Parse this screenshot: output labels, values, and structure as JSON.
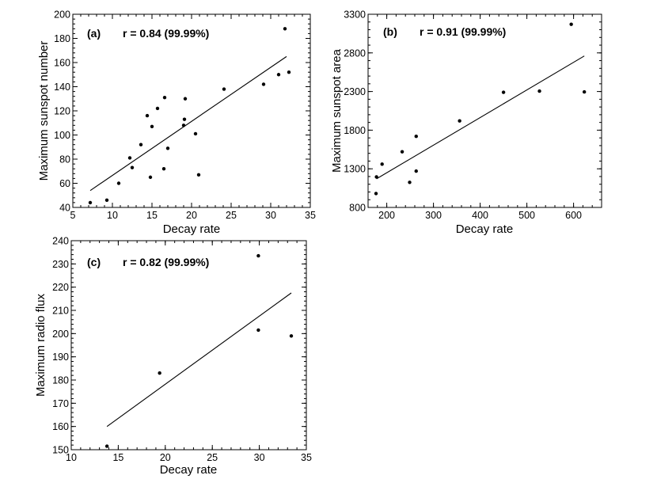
{
  "chart_data": [
    {
      "id": "a",
      "type": "scatter",
      "panel_label": "(a)",
      "correlation_label": "r = 0.84 (99.99%)",
      "xlabel": "Decay rate",
      "ylabel": "Maximum sunspot number",
      "xlim": [
        5,
        35
      ],
      "ylim": [
        40,
        200
      ],
      "xticks": [
        5,
        10,
        15,
        20,
        25,
        30,
        35
      ],
      "yticks": [
        40,
        60,
        80,
        100,
        120,
        140,
        160,
        180,
        200
      ],
      "xtick_labels": [
        "5",
        "10",
        "15",
        "20",
        "25",
        "30",
        "35"
      ],
      "ytick_labels": [
        "40",
        "60",
        "80",
        "100",
        "120",
        "140",
        "160",
        "180",
        "200"
      ],
      "x_minor_step": 1,
      "y_minor_step": 4,
      "points": [
        [
          7.2,
          44
        ],
        [
          9.3,
          46
        ],
        [
          10.8,
          60
        ],
        [
          12.2,
          81
        ],
        [
          12.5,
          73
        ],
        [
          13.6,
          92
        ],
        [
          14.4,
          116
        ],
        [
          14.8,
          65
        ],
        [
          15.0,
          107
        ],
        [
          15.7,
          122
        ],
        [
          16.5,
          72
        ],
        [
          16.6,
          131
        ],
        [
          17.0,
          89
        ],
        [
          19.0,
          108
        ],
        [
          19.1,
          113
        ],
        [
          19.2,
          130
        ],
        [
          20.5,
          101
        ],
        [
          20.9,
          67
        ],
        [
          24.1,
          138
        ],
        [
          29.1,
          142
        ],
        [
          31.0,
          150
        ],
        [
          31.8,
          188
        ],
        [
          32.3,
          152
        ]
      ],
      "fit_line": [
        [
          7.2,
          54
        ],
        [
          32.0,
          165
        ]
      ]
    },
    {
      "id": "b",
      "type": "scatter",
      "panel_label": "(b)",
      "correlation_label": "r = 0.91 (99.99%)",
      "xlabel": "Decay rate",
      "ylabel": "Maximum sunspot area",
      "xlim": [
        160,
        660
      ],
      "ylim": [
        800,
        3300
      ],
      "xticks": [
        200,
        300,
        400,
        500,
        600
      ],
      "yticks": [
        800,
        1300,
        1800,
        2300,
        2800,
        3300
      ],
      "xtick_labels": [
        "200",
        "300",
        "400",
        "500",
        "600"
      ],
      "ytick_labels": [
        "800",
        "1300",
        "1800",
        "2300",
        "2800",
        "3300"
      ],
      "x_minor_step": 20,
      "y_minor_step": 100,
      "points": [
        [
          177,
          980
        ],
        [
          178,
          1195
        ],
        [
          190,
          1360
        ],
        [
          233,
          1520
        ],
        [
          249,
          1125
        ],
        [
          263,
          1270
        ],
        [
          263,
          1720
        ],
        [
          356,
          1920
        ],
        [
          450,
          2290
        ],
        [
          527,
          2305
        ],
        [
          595,
          3170
        ],
        [
          623,
          2295
        ]
      ],
      "fit_line": [
        [
          178,
          1170
        ],
        [
          623,
          2760
        ]
      ]
    },
    {
      "id": "c",
      "type": "scatter",
      "panel_label": "(c)",
      "correlation_label": "r = 0.82 (99.99%)",
      "xlabel": "Decay rate",
      "ylabel": "Maximum radio flux",
      "xlim": [
        10,
        35
      ],
      "ylim": [
        150,
        240
      ],
      "xticks": [
        10,
        15,
        20,
        25,
        30,
        35
      ],
      "yticks": [
        150,
        160,
        170,
        180,
        190,
        200,
        210,
        220,
        230,
        240
      ],
      "xtick_labels": [
        "10",
        "15",
        "20",
        "25",
        "30",
        "35"
      ],
      "ytick_labels": [
        "150",
        "160",
        "170",
        "180",
        "190",
        "200",
        "210",
        "220",
        "230",
        "240"
      ],
      "x_minor_step": 1,
      "y_minor_step": 2,
      "points": [
        [
          13.8,
          151.5
        ],
        [
          19.4,
          183
        ],
        [
          29.9,
          233.5
        ],
        [
          29.9,
          201.5
        ],
        [
          33.4,
          199
        ]
      ],
      "fit_line": [
        [
          13.8,
          160
        ],
        [
          33.4,
          217.5
        ]
      ]
    }
  ]
}
